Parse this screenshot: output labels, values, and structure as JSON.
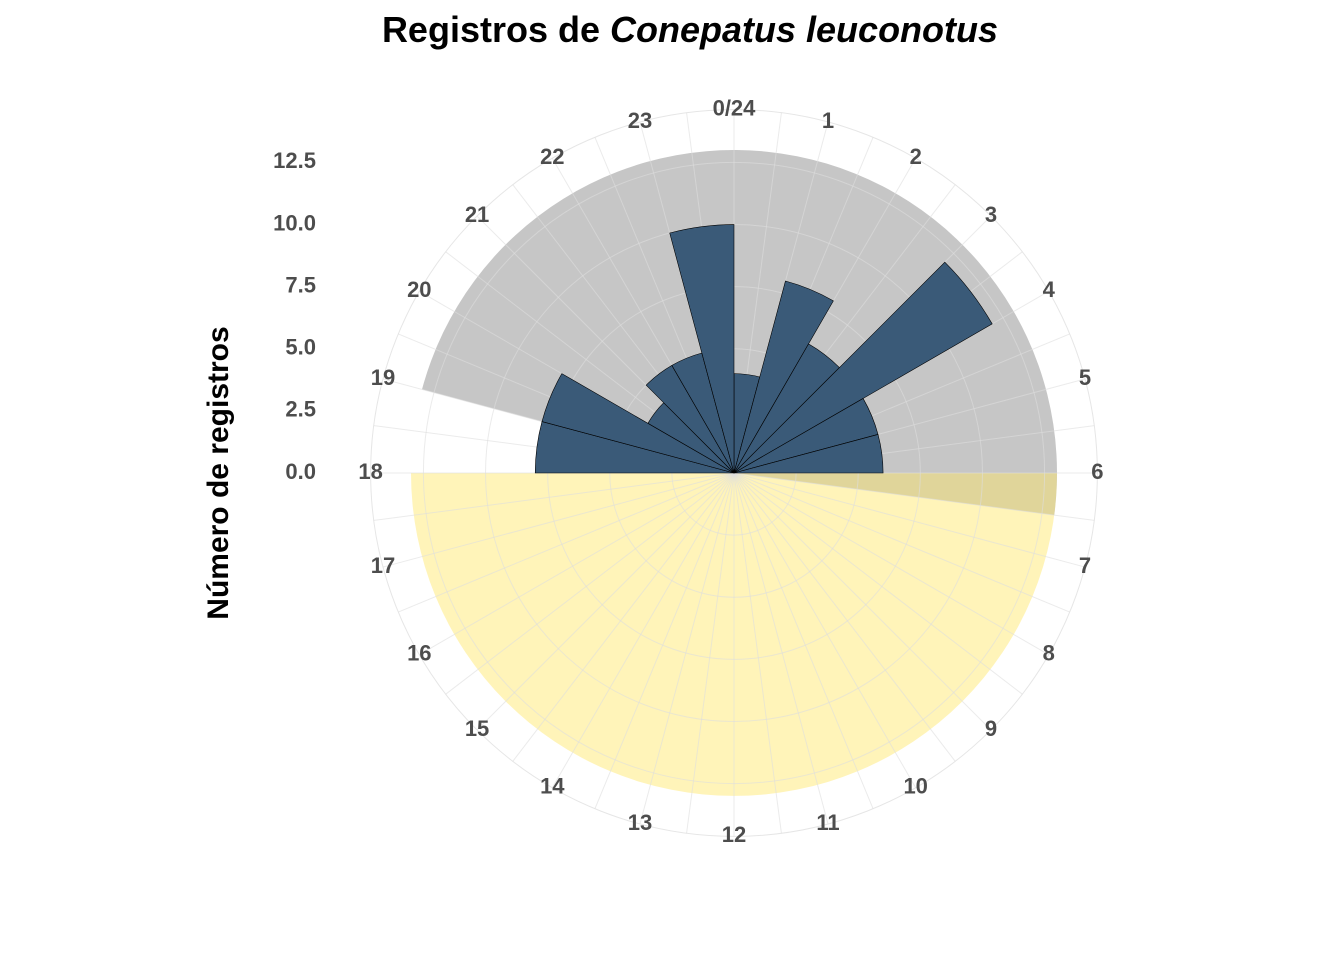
{
  "chart_data": {
    "type": "polar-bar",
    "title": "Registros de",
    "title_italic": "Conepatus leuconotus",
    "y_label": "Número de registros",
    "categories": [
      "0/24",
      "1",
      "2",
      "3",
      "4",
      "5",
      "6",
      "7",
      "8",
      "9",
      "10",
      "11",
      "12",
      "13",
      "14",
      "15",
      "16",
      "17",
      "18",
      "19",
      "20",
      "21",
      "22",
      "23"
    ],
    "values": [
      4,
      8,
      6,
      12,
      6,
      6,
      0,
      0,
      0,
      0,
      0,
      0,
      0,
      0,
      0,
      0,
      0,
      0,
      8,
      8,
      4,
      5,
      5,
      10
    ],
    "color": "#3a5a78",
    "ylim": [
      0,
      13
    ],
    "yticks": [
      {
        "value": 0,
        "label": "0.0"
      },
      {
        "value": 2.5,
        "label": "2.5"
      },
      {
        "value": 5,
        "label": "5.0"
      },
      {
        "value": 7.5,
        "label": "7.5"
      },
      {
        "value": 10,
        "label": "10.0"
      },
      {
        "value": 12.5,
        "label": "12.5"
      }
    ],
    "night_hours": [
      19,
      6.5
    ],
    "night_color": "#a0a0a0",
    "day_hours": [
      6,
      18
    ],
    "day_color": "#ffe664",
    "grid": true
  }
}
